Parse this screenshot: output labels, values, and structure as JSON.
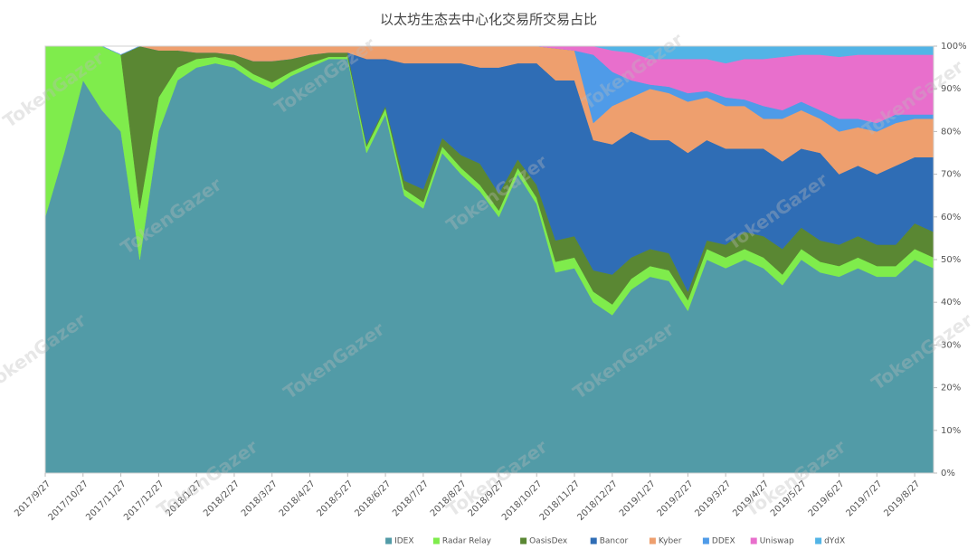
{
  "chart_data": {
    "type": "stacked_area",
    "title": "以太坊生态去中心化交易所交易占比",
    "watermark": "TokenGazer",
    "categories": [
      "2017/9/27",
      null,
      "2017/10/27",
      null,
      "2017/11/27",
      null,
      "2017/12/27",
      null,
      "2018/1/27",
      null,
      "2018/2/27",
      null,
      "2018/3/27",
      null,
      "2018/4/27",
      null,
      "2018/5/27",
      null,
      "2018/6/27",
      null,
      "2018/7/27",
      null,
      "2018/8/27",
      null,
      "2018/9/27",
      null,
      "2018/10/27",
      null,
      "2018/11/27",
      null,
      "2018/12/27",
      null,
      "2019/1/27",
      null,
      "2019/2/27",
      null,
      "2019/3/27",
      null,
      "2019/4/27",
      null,
      "2019/5/27",
      null,
      "2019/6/27",
      null,
      "2019/7/27",
      null,
      "2019/8/27",
      null
    ],
    "series": [
      {
        "name": "IDEX",
        "color": "#529ba7",
        "values": [
          60,
          75,
          92,
          85,
          80,
          50,
          80,
          92,
          95,
          96,
          95,
          92,
          90,
          93,
          95,
          97,
          97,
          75,
          84,
          65,
          62,
          75,
          70,
          66,
          60,
          70,
          63,
          47,
          48,
          40,
          37,
          43,
          46,
          45,
          38,
          50,
          48,
          50,
          48,
          44,
          50,
          47,
          46,
          48,
          46,
          46,
          50,
          48
        ]
      },
      {
        "name": "Radar Relay",
        "color": "#7fec4c",
        "values": [
          40,
          25,
          8,
          15,
          18,
          12,
          8,
          3,
          2,
          1.5,
          1.5,
          1.5,
          1.5,
          1,
          1,
          0.5,
          0.5,
          1.5,
          1.5,
          1.5,
          1.5,
          1.5,
          1.5,
          1.5,
          1.5,
          1.5,
          1.5,
          2.5,
          2.5,
          2.5,
          2.5,
          2.5,
          2.5,
          2.5,
          2.5,
          2.5,
          2.5,
          2.5,
          2.5,
          2.5,
          2.5,
          2.5,
          2.5,
          2.5,
          2.5,
          2.5,
          2.5,
          2.5
        ]
      },
      {
        "name": "OasisDex",
        "color": "#5a8733",
        "values": [
          0,
          0,
          0,
          0,
          0,
          38,
          11,
          4,
          1.5,
          1,
          1.5,
          3,
          5,
          3,
          2,
          1,
          1,
          0.5,
          0.5,
          2,
          3,
          2,
          3,
          5,
          4,
          2,
          3,
          5,
          5,
          5,
          7,
          5,
          4,
          4,
          2,
          2,
          3,
          4,
          5,
          6,
          5,
          5,
          5,
          5,
          5,
          5,
          6,
          6
        ]
      },
      {
        "name": "Bancor",
        "color": "#2f6db5",
        "values": [
          0,
          0,
          0,
          0,
          0,
          0,
          0,
          0,
          0,
          0,
          0,
          0,
          0,
          0,
          0,
          0,
          0,
          20,
          11,
          27.5,
          29.5,
          17.5,
          21.5,
          22.5,
          29.5,
          22.5,
          28.5,
          37.5,
          36.5,
          30.5,
          30.5,
          29.5,
          25.5,
          26.5,
          32.5,
          23.5,
          22.5,
          19.5,
          20.5,
          20.5,
          18.5,
          20.5,
          16.5,
          16.5,
          16.5,
          18.5,
          15.5,
          17.5
        ]
      },
      {
        "name": "Kyber",
        "color": "#ee9f6e",
        "values": [
          0,
          0,
          0,
          0,
          0,
          0,
          1,
          1,
          1.5,
          1.5,
          2,
          3.5,
          3.5,
          3,
          2,
          1.5,
          1.5,
          3,
          3,
          4,
          4,
          4,
          4,
          5,
          5,
          4,
          4,
          7.5,
          7,
          4,
          9,
          8,
          12,
          11,
          12,
          10,
          10,
          10,
          7,
          10,
          9,
          8,
          10,
          9,
          10,
          10,
          9,
          9
        ]
      },
      {
        "name": "DDEX",
        "color": "#4f9be8",
        "values": [
          0,
          0,
          0,
          0,
          0,
          0,
          0,
          0,
          0,
          0,
          0,
          0,
          0,
          0,
          0,
          0,
          0,
          0,
          0,
          0,
          0,
          0,
          0,
          0,
          0,
          0,
          0,
          0,
          0,
          16,
          8,
          4,
          1,
          1.5,
          2,
          1.5,
          2,
          1.5,
          3,
          2,
          2,
          2,
          3,
          2,
          2,
          2,
          1,
          1
        ]
      },
      {
        "name": "Uniswap",
        "color": "#e86fcc",
        "values": [
          0,
          0,
          0,
          0,
          0,
          0,
          0,
          0,
          0,
          0,
          0,
          0,
          0,
          0,
          0,
          0,
          0,
          0,
          0,
          0,
          0,
          0,
          0,
          0,
          0,
          0,
          0,
          0.5,
          1,
          2,
          5,
          6.5,
          6,
          6.5,
          8,
          7.5,
          8,
          9.5,
          11,
          12.5,
          11,
          13,
          14.5,
          15,
          16,
          14,
          14,
          14
        ]
      },
      {
        "name": "dYdX",
        "color": "#52b4e6",
        "values": [
          0,
          0,
          0,
          0,
          0,
          0,
          0,
          0,
          0,
          0,
          0,
          0,
          0,
          0,
          0,
          0,
          0,
          0,
          0,
          0,
          0,
          0,
          0,
          0,
          0,
          0,
          0,
          0,
          0,
          0,
          1,
          1.5,
          3,
          3,
          3,
          3,
          4,
          3,
          3,
          2.5,
          2,
          2,
          2.5,
          2,
          2,
          2,
          2,
          2
        ]
      }
    ],
    "ylim": [
      0,
      100
    ],
    "yticks": [
      {
        "value": 0,
        "label": "0%"
      },
      {
        "value": 10,
        "label": "10%"
      },
      {
        "value": 20,
        "label": "20%"
      },
      {
        "value": 30,
        "label": "30%"
      },
      {
        "value": 40,
        "label": "40%"
      },
      {
        "value": 50,
        "label": "50%"
      },
      {
        "value": 60,
        "label": "60%"
      },
      {
        "value": 70,
        "label": "70%"
      },
      {
        "value": 80,
        "label": "80%"
      },
      {
        "value": 90,
        "label": "90%"
      },
      {
        "value": 100,
        "label": "100%"
      }
    ],
    "legend": "bottom"
  }
}
